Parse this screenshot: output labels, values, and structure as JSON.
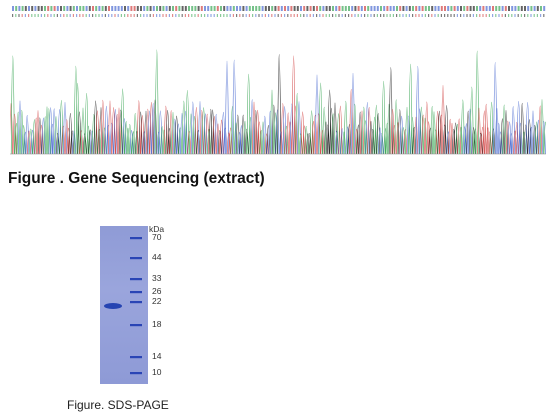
{
  "gene_sequencing": {
    "caption": "Figure . Gene Sequencing (extract)",
    "trace_colors": {
      "A": "#3aa655",
      "C": "#4a6ad0",
      "G": "#222222",
      "T": "#d04040"
    }
  },
  "sds_page": {
    "caption": "Figure. SDS-PAGE",
    "unit_label": "kDa",
    "markers": [
      "70",
      "44",
      "33",
      "26",
      "22",
      "18",
      "14",
      "10"
    ],
    "gel_color": "#8f9bd6",
    "band_color": "#1f3fb0"
  }
}
